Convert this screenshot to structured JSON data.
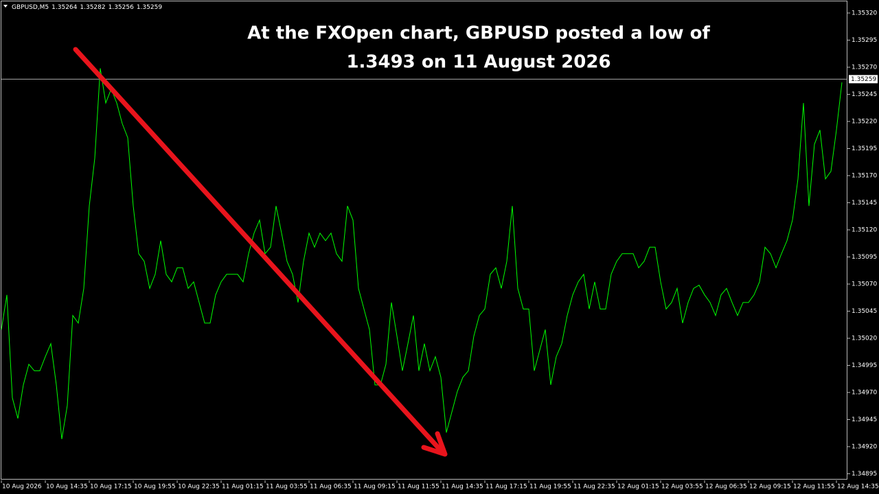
{
  "chart_data": {
    "type": "line",
    "symbol": "GBPUSD,M5",
    "ohlc": [
      1.35264,
      1.35282,
      1.35256,
      1.35259
    ],
    "title_lines": [
      "At the FXOpen chart, GBPUSD posted a low of",
      "1.3493 on 11 August 2026"
    ],
    "current_price": {
      "value": 1.35259,
      "label": "1.35259"
    },
    "color": "#00ff00",
    "categories": [
      "10 Aug 2026",
      null,
      null,
      null,
      null,
      null,
      null,
      null,
      "10 Aug 14:35",
      null,
      null,
      null,
      null,
      null,
      null,
      null,
      "10 Aug 17:15",
      null,
      null,
      null,
      null,
      null,
      null,
      null,
      "10 Aug 19:55",
      null,
      null,
      null,
      null,
      null,
      null,
      null,
      "10 Aug 22:35",
      null,
      null,
      null,
      null,
      null,
      null,
      null,
      "11 Aug 01:15",
      null,
      null,
      null,
      null,
      null,
      null,
      null,
      "11 Aug 03:55",
      null,
      null,
      null,
      null,
      null,
      null,
      null,
      "11 Aug 06:35",
      null,
      null,
      null,
      null,
      null,
      null,
      null,
      "11 Aug 09:15",
      null,
      null,
      null,
      null,
      null,
      null,
      null,
      "11 Aug 11:55",
      null,
      null,
      null,
      null,
      null,
      null,
      null,
      "11 Aug 14:35",
      null,
      null,
      null,
      null,
      null,
      null,
      null,
      "11 Aug 17:15",
      null,
      null,
      null,
      null,
      null,
      null,
      null,
      "11 Aug 19:55",
      null,
      null,
      null,
      null,
      null,
      null,
      null,
      "11 Aug 22:35",
      null,
      null,
      null,
      null,
      null,
      null,
      null,
      "12 Aug 01:15",
      null,
      null,
      null,
      null,
      null,
      null,
      null,
      "12 Aug 03:55",
      null,
      null,
      null,
      null,
      null,
      null,
      null,
      "12 Aug 06:35",
      null,
      null,
      null,
      null,
      null,
      null,
      null,
      "12 Aug 09:15",
      null,
      null,
      null,
      null,
      null,
      null,
      null,
      "12 Aug 11:55",
      null,
      null,
      null,
      null,
      null,
      null,
      null,
      "12 Aug 14:35",
      null
    ],
    "values": [
      1.35028,
      1.3506,
      1.34965,
      1.34946,
      1.34977,
      1.34996,
      1.3499,
      1.3499,
      1.35003,
      1.35015,
      1.34977,
      1.34927,
      1.34958,
      1.35041,
      1.35034,
      1.35066,
      1.35142,
      1.35186,
      1.35269,
      1.35237,
      1.3525,
      1.35237,
      1.35218,
      1.35205,
      1.35142,
      1.35098,
      1.35091,
      1.35066,
      1.35079,
      1.3511,
      1.35079,
      1.35072,
      1.35085,
      1.35085,
      1.35066,
      1.35072,
      1.35053,
      1.35034,
      1.35034,
      1.3506,
      1.35072,
      1.35079,
      1.35079,
      1.35079,
      1.35072,
      1.35098,
      1.35117,
      1.35129,
      1.35098,
      1.35104,
      1.35142,
      1.35117,
      1.35091,
      1.35079,
      1.35053,
      1.35091,
      1.35117,
      1.35104,
      1.35117,
      1.3511,
      1.35117,
      1.35098,
      1.35091,
      1.35142,
      1.35129,
      1.35066,
      1.35047,
      1.35028,
      1.34977,
      1.34977,
      1.34996,
      1.35053,
      1.35022,
      1.3499,
      1.35015,
      1.35041,
      1.3499,
      1.35015,
      1.3499,
      1.35003,
      1.34984,
      1.34933,
      1.34952,
      1.34971,
      1.34984,
      1.3499,
      1.35022,
      1.35041,
      1.35047,
      1.35079,
      1.35085,
      1.35066,
      1.35091,
      1.35142,
      1.35066,
      1.35047,
      1.35047,
      1.3499,
      1.35009,
      1.35028,
      1.34977,
      1.35003,
      1.35015,
      1.35041,
      1.3506,
      1.35072,
      1.35079,
      1.35047,
      1.35072,
      1.35047,
      1.35047,
      1.35079,
      1.35091,
      1.35098,
      1.35098,
      1.35098,
      1.35085,
      1.35091,
      1.35104,
      1.35104,
      1.35072,
      1.35047,
      1.35053,
      1.35066,
      1.35034,
      1.35053,
      1.35066,
      1.35069,
      1.3506,
      1.35053,
      1.35041,
      1.3506,
      1.35066,
      1.35053,
      1.35041,
      1.35053,
      1.35053,
      1.3506,
      1.35072,
      1.35104,
      1.35098,
      1.35085,
      1.35098,
      1.3511,
      1.35129,
      1.35167,
      1.35237,
      1.35142,
      1.35199,
      1.35212,
      1.35167,
      1.35174,
      1.35212,
      1.35256
    ],
    "ylim": [
      1.34889,
      1.35332
    ],
    "yticks": [
      {
        "value": 1.3532,
        "label": "1.35320"
      },
      {
        "value": 1.35295,
        "label": "1.35295"
      },
      {
        "value": 1.3527,
        "label": "1.35270"
      },
      {
        "value": 1.35245,
        "label": "1.35245"
      },
      {
        "value": 1.3522,
        "label": "1.35220"
      },
      {
        "value": 1.35195,
        "label": "1.35195"
      },
      {
        "value": 1.3517,
        "label": "1.35170"
      },
      {
        "value": 1.35145,
        "label": "1.35145"
      },
      {
        "value": 1.3512,
        "label": "1.35120"
      },
      {
        "value": 1.35095,
        "label": "1.35095"
      },
      {
        "value": 1.3507,
        "label": "1.35070"
      },
      {
        "value": 1.35045,
        "label": "1.35045"
      },
      {
        "value": 1.3502,
        "label": "1.35020"
      },
      {
        "value": 1.34995,
        "label": "1.34995"
      },
      {
        "value": 1.3497,
        "label": "1.34970"
      },
      {
        "value": 1.34945,
        "label": "1.34945"
      },
      {
        "value": 1.3492,
        "label": "1.34920"
      },
      {
        "value": 1.34895,
        "label": "1.34895"
      }
    ]
  }
}
